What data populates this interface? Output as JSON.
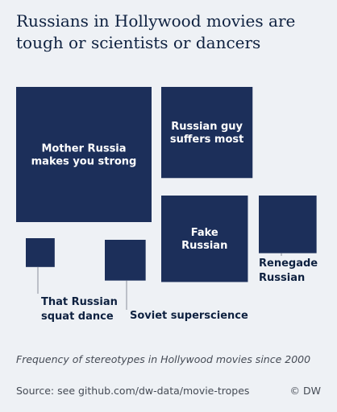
{
  "title": "Russians in Hollywood movies are tough or scientists or dancers",
  "caption": "Frequency of stereotypes in Hollywood movies since 2000",
  "source": "Source: see github.com/dw-data/movie-tropes",
  "credit": "© DW",
  "colors": {
    "background": "#eef1f5",
    "square_fill": "#1c2f5a",
    "label_on_dark": "#ffffff",
    "label_on_light": "#0e2140",
    "leader_line": "#8a909a"
  },
  "chart_data": {
    "type": "treemap",
    "encoding": "area of each square proportional to frequency",
    "series": [
      {
        "name": "Mother Russia makes you strong",
        "value": 22,
        "label_position": "inside"
      },
      {
        "name": "Russian guy suffers most",
        "value": 10,
        "label_position": "inside"
      },
      {
        "name": "Fake Russian",
        "value": 9,
        "label_position": "inside"
      },
      {
        "name": "Renegade Russian",
        "value": 4,
        "label_position": "outside"
      },
      {
        "name": "That Russian squat dance",
        "value": 1,
        "label_position": "outside"
      },
      {
        "name": "Soviet superscience",
        "value": 2,
        "label_position": "outside"
      }
    ]
  }
}
